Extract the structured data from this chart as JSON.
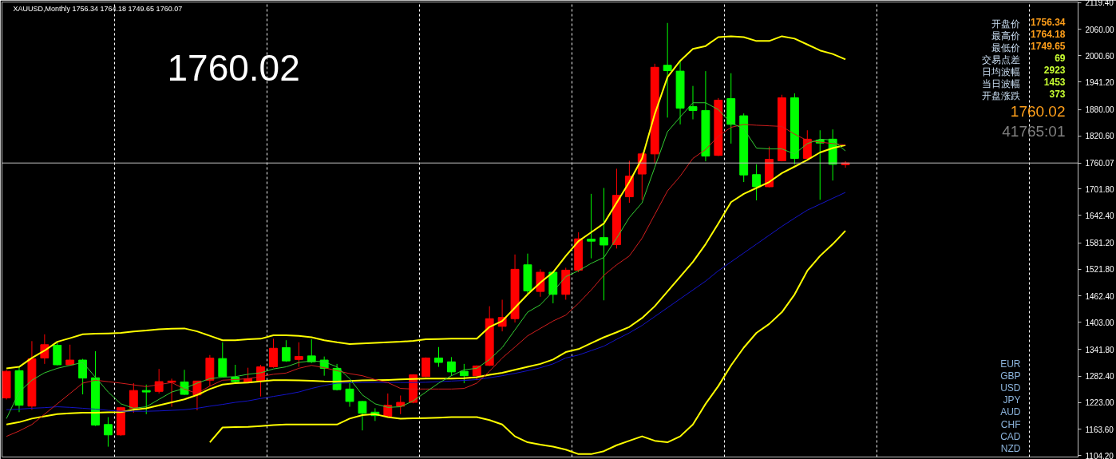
{
  "chart_data": {
    "type": "candlestick",
    "title": "XAUUSD,Monthly  1756.34 1764.18 1749.65 1760.07",
    "categories": [
      null,
      null,
      null,
      null,
      null,
      null,
      null,
      null,
      null,
      null,
      null,
      null,
      null,
      null,
      null,
      null,
      null,
      null,
      null,
      null,
      null,
      null,
      null,
      null,
      null,
      null,
      null,
      null,
      null,
      null,
      null,
      null,
      null,
      null,
      null,
      null,
      null,
      null,
      null,
      null,
      null,
      null,
      null,
      null,
      null,
      null,
      null,
      null,
      null,
      null,
      null,
      null,
      null,
      null,
      null,
      null,
      null,
      null,
      null,
      null,
      null,
      null,
      null,
      null,
      null,
      null,
      null
    ],
    "ohlc": [
      [
        1233.5,
        1296,
        1230,
        1293.1
      ],
      [
        1294.5,
        1303.1,
        1201.6,
        1216.9
      ],
      [
        1215.0,
        1360.8,
        1207.0,
        1321.0
      ],
      [
        1323.0,
        1376.0,
        1309.7,
        1352.8
      ],
      [
        1351.5,
        1359.4,
        1306.4,
        1307.7
      ],
      [
        1307.7,
        1352.8,
        1306.4,
        1318.3
      ],
      [
        1318.3,
        1321.0,
        1241.4,
        1277.9
      ],
      [
        1278.6,
        1338.2,
        1170.5,
        1172.5
      ],
      [
        1173.8,
        1190.4,
        1124.1,
        1150.6
      ],
      [
        1150.6,
        1213.6,
        1148.6,
        1211.6
      ],
      [
        1210.3,
        1266.6,
        1200.3,
        1250.1
      ],
      [
        1250.1,
        1263.3,
        1197.0,
        1246.7
      ],
      [
        1248.1,
        1298.4,
        1243.4,
        1270.0
      ],
      [
        1268.6,
        1276.6,
        1213.6,
        1271.3
      ],
      [
        1269.3,
        1296.5,
        1240.1,
        1241.4
      ],
      [
        1240.1,
        1271.9,
        1205.6,
        1271.3
      ],
      [
        1273.2,
        1329.6,
        1260.0,
        1322.7
      ],
      [
        1321.7,
        1358.1,
        1279.9,
        1281.2
      ],
      [
        1279.9,
        1307.7,
        1266.6,
        1270.0
      ],
      [
        1268.0,
        1301.1,
        1266.6,
        1276.6
      ],
      [
        1271.9,
        1307.7,
        1236.8,
        1303.1
      ],
      [
        1303.1,
        1366.1,
        1301.1,
        1344.8
      ],
      [
        1346.2,
        1362.8,
        1314.4,
        1316.4
      ],
      [
        1319.6,
        1358.1,
        1303.1,
        1326.3
      ],
      [
        1327.6,
        1364.8,
        1311.7,
        1314.4
      ],
      [
        1318.3,
        1326.3,
        1283.2,
        1299.8
      ],
      [
        1299.8,
        1309.7,
        1250.1,
        1252.0
      ],
      [
        1253.4,
        1268.0,
        1213.6,
        1225.5
      ],
      [
        1225.5,
        1226.8,
        1160.6,
        1199.0
      ],
      [
        1201.6,
        1210.3,
        1181.8,
        1193.7
      ],
      [
        1192.4,
        1243.4,
        1190.4,
        1216.9
      ],
      [
        1214.9,
        1238.8,
        1197.0,
        1223.5
      ],
      [
        1223.5,
        1286.5,
        1221.5,
        1285.2
      ],
      [
        1281.2,
        1324.3,
        1279.9,
        1323.0
      ],
      [
        1323.0,
        1347.5,
        1303.1,
        1313.0
      ],
      [
        1314.4,
        1325.0,
        1283.2,
        1291.8
      ],
      [
        1293.1,
        1309.7,
        1266.6,
        1283.2
      ],
      [
        1283.2,
        1306.4,
        1273.3,
        1305.1
      ],
      [
        1306.4,
        1439.0,
        1305.1,
        1411.1
      ],
      [
        1393.9,
        1453.6,
        1382.6,
        1413.8
      ],
      [
        1411.1,
        1555.0,
        1402.5,
        1521.8
      ],
      [
        1531.8,
        1557.0,
        1465.5,
        1473.4
      ],
      [
        1472.1,
        1521.8,
        1460.2,
        1515.2
      ],
      [
        1515.2,
        1517.2,
        1445.6,
        1465.5
      ],
      [
        1465.5,
        1525.2,
        1453.6,
        1519.9
      ],
      [
        1519.9,
        1604.7,
        1515.2,
        1590.1
      ],
      [
        1589.5,
        1690.9,
        1546.4,
        1584.8
      ],
      [
        1592.8,
        1704.1,
        1452.2,
        1576.2
      ],
      [
        1576.9,
        1747.2,
        1568.3,
        1687.6
      ],
      [
        1684.3,
        1765.1,
        1671.0,
        1730.7
      ],
      [
        1735.3,
        1783.7,
        1677.6,
        1780.4
      ],
      [
        1780.4,
        1982.6,
        1760.5,
        1974.6
      ],
      [
        1979.2,
        2074.0,
        1861.9,
        1967.3
      ],
      [
        1966.0,
        1989.2,
        1846.7,
        1883.1
      ],
      [
        1886.4,
        1932.8,
        1857.9,
        1877.8
      ],
      [
        1877.8,
        1966.0,
        1763.8,
        1775.7
      ],
      [
        1777.1,
        1905.7,
        1775.7,
        1901.0
      ],
      [
        1904.3,
        1961.3,
        1803.6,
        1846.7
      ],
      [
        1865.9,
        1871.2,
        1717.4,
        1733.3
      ],
      [
        1734.0,
        1757.2,
        1676.3,
        1706.8
      ],
      [
        1706.8,
        1796.9,
        1705.5,
        1768.4
      ],
      [
        1765.1,
        1913.0,
        1763.8,
        1906.3
      ],
      [
        1906.3,
        1916.3,
        1757.2,
        1770.4
      ],
      [
        1770.4,
        1833.4,
        1767.1,
        1813.5
      ],
      [
        1811.5,
        1833.4,
        1677.6,
        1804.9
      ],
      [
        1813.5,
        1835.4,
        1720.7,
        1757.2
      ],
      [
        1756.34,
        1764.18,
        1749.65,
        1760.07
      ]
    ],
    "colors": [
      "#ff0000",
      "#00ff00",
      "#ff0000",
      "#ff0000",
      "#00ff00",
      "#ff0000",
      "#00ff00",
      "#00ff00",
      "#00ff00",
      "#ff0000",
      "#ff0000",
      "#00ff00",
      "#ff0000",
      "#ff0000",
      "#00ff00",
      "#ff0000",
      "#ff0000",
      "#00ff00",
      "#00ff00",
      "#ff0000",
      "#ff0000",
      "#ff0000",
      "#00ff00",
      "#ff0000",
      "#00ff00",
      "#00ff00",
      "#00ff00",
      "#00ff00",
      "#00ff00",
      "#00ff00",
      "#ff0000",
      "#ff0000",
      "#ff0000",
      "#ff0000",
      "#00ff00",
      "#00ff00",
      "#00ff00",
      "#ff0000",
      "#ff0000",
      "#ff0000",
      "#ff0000",
      "#00ff00",
      "#ff0000",
      "#00ff00",
      "#ff0000",
      "#ff0000",
      "#00ff00",
      "#00ff00",
      "#ff0000",
      "#ff0000",
      "#ff0000",
      "#ff0000",
      "#00ff00",
      "#00ff00",
      "#00ff00",
      "#00ff00",
      "#ff0000",
      "#00ff00",
      "#00ff00",
      "#00ff00",
      "#ff0000",
      "#ff0000",
      "#00ff00",
      "#ff0000",
      "#00ff00",
      "#00ff00",
      "#ff0000"
    ],
    "series": [
      {
        "type": "line",
        "color": "#ffff00",
        "values": [
          1299.8,
          1303.1,
          1323.0,
          1339.5,
          1359.4,
          1367.4,
          1376.0,
          1377.3,
          1378.0,
          1379.3,
          1382.6,
          1384.6,
          1387.3,
          1388.6,
          1389.3,
          1382.6,
          1372.7,
          1362.8,
          1362.8,
          1364.8,
          1366.1,
          1374.0,
          1374.0,
          1372.7,
          1369.4,
          1362.8,
          1358.1,
          1354.1,
          1355.5,
          1356.8,
          1358.1,
          1359.4,
          1361.4,
          1364.8,
          1365.4,
          1366.1,
          1366.1,
          1366.1,
          1392.6,
          1405.8,
          1435.7,
          1465.5,
          1492.0,
          1515.2,
          1551.7,
          1584.8,
          1604.7,
          1624.6,
          1671.0,
          1717.4,
          1770.4,
          1869.9,
          1952.7,
          1989.2,
          2015.7,
          2022.3,
          2042.2,
          2044.2,
          2042.2,
          2033.6,
          2033.6,
          2044.2,
          2038.9,
          2025.7,
          2012.4,
          2004.4,
          1992.5
        ]
      },
      {
        "type": "line",
        "color": "#ffff00",
        "values": [
          1173.8,
          1179.1,
          1187.1,
          1192.4,
          1197.0,
          1199.0,
          1200.3,
          1200.3,
          1201.0,
          1201.6,
          1206.9,
          1210.3,
          1216.9,
          1223.5,
          1230.2,
          1240.1,
          1253.4,
          1263.3,
          1266.6,
          1268.0,
          1270.6,
          1273.2,
          1273.2,
          1272.6,
          1271.9,
          1270.6,
          1270.0,
          1271.3,
          1272.6,
          1273.2,
          1273.9,
          1275.2,
          1275.9,
          1276.6,
          1276.6,
          1276.6,
          1277.9,
          1279.9,
          1285.2,
          1289.8,
          1296.5,
          1303.1,
          1309.7,
          1319.6,
          1336.2,
          1342.9,
          1356.1,
          1369.4,
          1380.6,
          1392.6,
          1412.5,
          1439.0,
          1472.1,
          1505.3,
          1538.4,
          1578.2,
          1624.6,
          1672.3,
          1690.9,
          1704.1,
          1717.4,
          1737.3,
          1751.9,
          1767.1,
          1783.7,
          1793.6,
          1800.3
        ]
      },
      {
        "type": "line",
        "color": "#ffff00",
        "values": [
          null,
          null,
          null,
          null,
          null,
          null,
          null,
          null,
          null,
          null,
          null,
          null,
          null,
          null,
          null,
          null,
          1134.0,
          1167.2,
          1167.9,
          1168.5,
          1170.5,
          1172.5,
          1173.8,
          1173.8,
          1173.8,
          1173.8,
          1173.8,
          1187.1,
          1195.0,
          1197.0,
          1190.4,
          1187.1,
          1187.7,
          1188.4,
          1189.1,
          1190.4,
          1190.4,
          1190.4,
          1183.8,
          1173.8,
          1147.3,
          1134.0,
          1128.7,
          1124.1,
          1117.5,
          1107.5,
          1107.5,
          1114.1,
          1127.4,
          1137.4,
          1147.3,
          1137.4,
          1134.0,
          1147.3,
          1173.8,
          1220.2,
          1260.0,
          1306.4,
          1346.2,
          1379.3,
          1399.2,
          1425.7,
          1465.5,
          1518.5,
          1551.7,
          1578.2,
          1608.0
        ]
      },
      {
        "type": "line",
        "color": "#1414c8",
        "values": [
          1207.0,
          1208.3,
          1210.3,
          1211.6,
          1213.6,
          1212.3,
          1210.3,
          1208.3,
          1205.6,
          1203.6,
          1203.6,
          1203.6,
          1204.3,
          1205.6,
          1207.0,
          1210.3,
          1214.9,
          1218.9,
          1223.5,
          1226.8,
          1232.1,
          1236.8,
          1241.4,
          1246.7,
          1254.7,
          1261.3,
          1266.6,
          1267.3,
          1268.0,
          1268.0,
          1268.0,
          1268.0,
          1268.0,
          1268.6,
          1269.9,
          1271.3,
          1272.6,
          1274.6,
          1278.6,
          1283.2,
          1288.5,
          1294.5,
          1301.1,
          1309.7,
          1323.0,
          1329.6,
          1339.5,
          1349.5,
          1364.8,
          1379.3,
          1395.9,
          1415.8,
          1435.7,
          1455.6,
          1475.4,
          1495.3,
          1518.5,
          1538.4,
          1558.3,
          1578.2,
          1598.1,
          1618.0,
          1636.5,
          1654.4,
          1667.7,
          1681.0,
          1694.2
        ]
      },
      {
        "type": "line",
        "color": "#d21e1e",
        "values": [
          1147.3,
          1159.3,
          1173.8,
          1197.0,
          1220.2,
          1243.4,
          1266.6,
          1273.2,
          1269.9,
          1266.6,
          1262.7,
          1258.7,
          1263.3,
          1268.0,
          1253.4,
          1243.4,
          1260.0,
          1273.2,
          1274.6,
          1276.6,
          1281.2,
          1286.5,
          1289.2,
          1299.8,
          1306.4,
          1301.1,
          1294.5,
          1287.9,
          1283.2,
          1274.6,
          1268.0,
          1254.7,
          1253.4,
          1253.4,
          1253.4,
          1253.4,
          1254.7,
          1266.6,
          1293.1,
          1323.0,
          1347.5,
          1372.7,
          1389.3,
          1405.8,
          1419.1,
          1445.6,
          1475.4,
          1508.6,
          1531.8,
          1551.7,
          1591.5,
          1644.5,
          1697.5,
          1730.7,
          1770.4,
          1790.3,
          1820.1,
          1840.0,
          1846.7,
          1844.7,
          1843.4,
          1842.0,
          1824.8,
          1810.2,
          1806.9,
          1803.6,
          1800.3
        ]
      },
      {
        "type": "line",
        "color": "#32cd32",
        "values": [
          1187.1,
          1246.7,
          1273.2,
          1289.8,
          1299.8,
          1306.4,
          1313.0,
          1279.9,
          1246.7,
          1220.2,
          1210.3,
          1213.6,
          1230.2,
          1246.7,
          1254.7,
          1266.6,
          1276.6,
          1279.9,
          1281.2,
          1286.5,
          1289.8,
          1298.4,
          1303.1,
          1313.0,
          1316.4,
          1314.4,
          1303.1,
          1276.6,
          1240.1,
          1220.2,
          1212.3,
          1213.6,
          1226.8,
          1246.7,
          1266.6,
          1283.2,
          1296.5,
          1299.8,
          1319.6,
          1346.2,
          1385.9,
          1425.7,
          1442.3,
          1472.1,
          1505.3,
          1518.5,
          1535.1,
          1548.4,
          1591.5,
          1637.8,
          1671.0,
          1750.5,
          1830.1,
          1863.2,
          1895.1,
          1895.1,
          1879.8,
          1850.0,
          1836.7,
          1793.6,
          1791.6,
          1791.6,
          1780.4,
          1803.6,
          1813.5,
          1811.5,
          1787.0
        ]
      }
    ],
    "ylim": [
      1101,
      2121
    ],
    "yticks": [
      {
        "value": 1104.2,
        "label": "1104.20"
      },
      {
        "value": 1163.6,
        "label": "1163.60"
      },
      {
        "value": 1223.0,
        "label": "1223.00"
      },
      {
        "value": 1282.4,
        "label": "1282.40"
      },
      {
        "value": 1341.8,
        "label": "1341.80"
      },
      {
        "value": 1403.0,
        "label": "1403.00"
      },
      {
        "value": 1462.4,
        "label": "1462.40"
      },
      {
        "value": 1521.8,
        "label": "1521.80"
      },
      {
        "value": 1581.2,
        "label": "1581.20"
      },
      {
        "value": 1642.4,
        "label": "1642.40"
      },
      {
        "value": 1701.8,
        "label": "1701.80"
      },
      {
        "value": 1820.6,
        "label": "1820.60"
      },
      {
        "value": 1880.0,
        "label": "1880.00"
      },
      {
        "value": 1941.2,
        "label": "1941.20"
      },
      {
        "value": 2000.6,
        "label": "2000.60"
      },
      {
        "value": 2060.0,
        "label": "2060.00"
      },
      {
        "value": 2119.4,
        "label": "2119.40"
      }
    ],
    "ref_lines": [
      {
        "axis": "y",
        "value": 1760.07,
        "label": "1760.07",
        "color": "#c0c0c0"
      }
    ],
    "grid": "x",
    "tick_labels": "y",
    "annotations": [
      "1760.02",
      "开盘价",
      "1756.34",
      "最高价",
      "1764.18",
      "最低价",
      "1749.65",
      "交易点差",
      "69",
      "日均波幅",
      "2923",
      "当日波幅",
      "1453",
      "开盘涨跌",
      "373",
      "1760.02",
      "41765:01",
      "EUR",
      "GBP",
      "USD",
      "JPY",
      "AUD",
      "CHF",
      "CAD",
      "NZD"
    ]
  }
}
